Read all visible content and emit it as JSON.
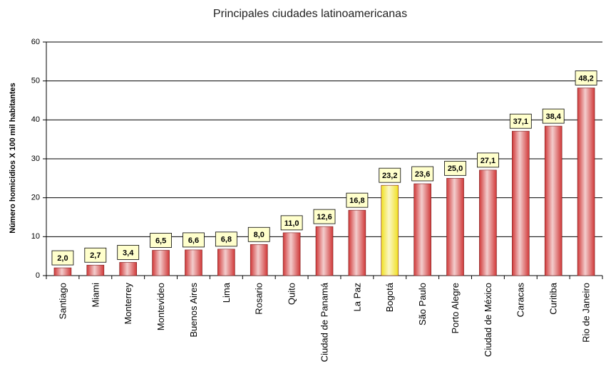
{
  "chart_data": {
    "type": "bar",
    "title": "Principales ciudades latinoamericanas",
    "y_label": "Número homicidios X 100 mil habitantes",
    "categories": [
      "Santiago",
      "Miami",
      "Monterrey",
      "Montevideo",
      "Buenos Aires",
      "Lima",
      "Rosario",
      "Quito",
      "Ciudad de Panamá",
      "La Paz",
      "Bogotá",
      "São Paulo",
      "Porto Alegre",
      "Ciudad de México",
      "Caracas",
      "Curitiba",
      "Rio de Janeiro"
    ],
    "values": [
      2.0,
      2.7,
      3.4,
      6.5,
      6.6,
      6.8,
      8.0,
      11.0,
      12.6,
      16.8,
      23.2,
      23.6,
      25.0,
      27.1,
      37.1,
      38.4,
      48.2
    ],
    "value_labels": [
      "2,0",
      "2,7",
      "3,4",
      "6,5",
      "6,6",
      "6,8",
      "8,0",
      "11,0",
      "12,6",
      "16,8",
      "23,2",
      "23,6",
      "25,0",
      "27,1",
      "37,1",
      "38,4",
      "48,2"
    ],
    "colors": [
      "#d03838",
      "#d03838",
      "#d03838",
      "#d03838",
      "#d03838",
      "#d03838",
      "#d03838",
      "#d03838",
      "#d03838",
      "#d03838",
      "#f0e020",
      "#d03838",
      "#d03838",
      "#d03838",
      "#d03838",
      "#d03838",
      "#d03838"
    ],
    "ylim": [
      0,
      60
    ],
    "yticks": [
      0,
      10,
      20,
      30,
      40,
      50,
      60
    ],
    "grid": true
  }
}
